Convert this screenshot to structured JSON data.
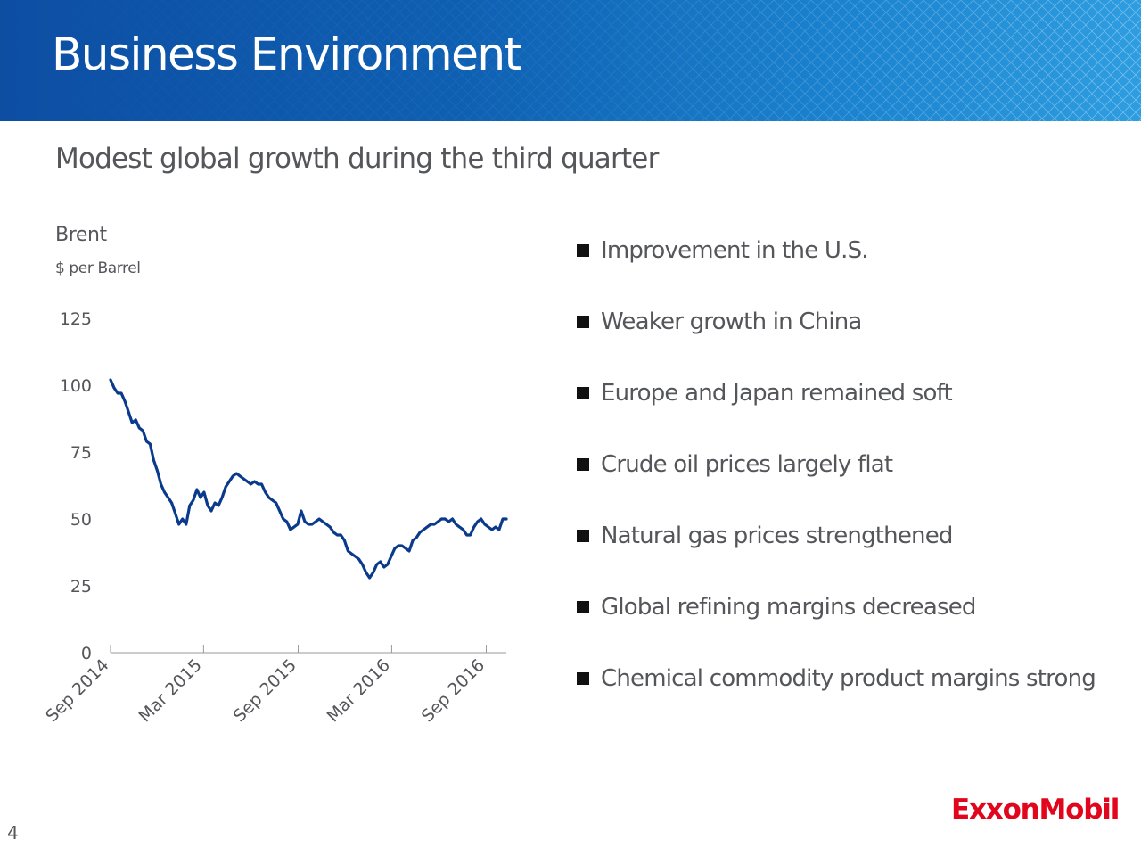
{
  "header": {
    "title": "Business Environment",
    "background_color": "#0e5fb2"
  },
  "subtitle": "Modest global growth during the third quarter",
  "chart_data": {
    "type": "line",
    "title": "Brent",
    "ylabel": "$ per Barrel",
    "xlabel": "",
    "ylim": [
      0,
      125
    ],
    "yticks": [
      "125",
      "100",
      "75",
      "50",
      "25",
      "0"
    ],
    "ytick_values": [
      125,
      100,
      75,
      50,
      25,
      0
    ],
    "xticks": [
      "Sep 2014",
      "Mar 2015",
      "Sep 2015",
      "Mar 2016",
      "Sep 2016"
    ],
    "xtick_values": [
      "2014-09-01",
      "2015-03-01",
      "2015-09-01",
      "2016-03-01",
      "2016-09-01"
    ],
    "grid": false,
    "line_color": "#0a3a8c",
    "series": [
      {
        "x": [
          "2014-09-01",
          "2014-09-08",
          "2014-09-15",
          "2014-09-22",
          "2014-09-29",
          "2014-10-06",
          "2014-10-13",
          "2014-10-20",
          "2014-10-27",
          "2014-11-03",
          "2014-11-10",
          "2014-11-17",
          "2014-11-24",
          "2014-12-01",
          "2014-12-08",
          "2014-12-15",
          "2014-12-22",
          "2014-12-29",
          "2015-01-05",
          "2015-01-12",
          "2015-01-19",
          "2015-01-26",
          "2015-02-02",
          "2015-02-09",
          "2015-02-16",
          "2015-02-23",
          "2015-03-02",
          "2015-03-09",
          "2015-03-16",
          "2015-03-23",
          "2015-03-30",
          "2015-04-06",
          "2015-04-13",
          "2015-04-20",
          "2015-04-27",
          "2015-05-04",
          "2015-05-11",
          "2015-05-18",
          "2015-05-25",
          "2015-06-01",
          "2015-06-08",
          "2015-06-15",
          "2015-06-22",
          "2015-06-29",
          "2015-07-06",
          "2015-07-13",
          "2015-07-20",
          "2015-07-27",
          "2015-08-03",
          "2015-08-10",
          "2015-08-17",
          "2015-08-24",
          "2015-08-31",
          "2015-09-07",
          "2015-09-14",
          "2015-09-21",
          "2015-09-28",
          "2015-10-05",
          "2015-10-12",
          "2015-10-19",
          "2015-10-26",
          "2015-11-02",
          "2015-11-09",
          "2015-11-16",
          "2015-11-23",
          "2015-11-30",
          "2015-12-07",
          "2015-12-14",
          "2015-12-21",
          "2015-12-28",
          "2016-01-04",
          "2016-01-11",
          "2016-01-18",
          "2016-01-25",
          "2016-02-01",
          "2016-02-08",
          "2016-02-15",
          "2016-02-22",
          "2016-02-29",
          "2016-03-07",
          "2016-03-14",
          "2016-03-21",
          "2016-03-28",
          "2016-04-04",
          "2016-04-11",
          "2016-04-18",
          "2016-04-25",
          "2016-05-02",
          "2016-05-09",
          "2016-05-16",
          "2016-05-23",
          "2016-05-30",
          "2016-06-06",
          "2016-06-13",
          "2016-06-20",
          "2016-06-27",
          "2016-07-04",
          "2016-07-11",
          "2016-07-18",
          "2016-07-25",
          "2016-08-01",
          "2016-08-08",
          "2016-08-15",
          "2016-08-22",
          "2016-08-29",
          "2016-09-05",
          "2016-09-12",
          "2016-09-19",
          "2016-09-26",
          "2016-10-03",
          "2016-10-10"
        ],
        "values": [
          102,
          99,
          97,
          97,
          94,
          90,
          86,
          87,
          84,
          83,
          79,
          78,
          72,
          68,
          63,
          60,
          58,
          56,
          52,
          48,
          50,
          48,
          55,
          57,
          61,
          58,
          60,
          55,
          53,
          56,
          55,
          58,
          62,
          64,
          66,
          67,
          66,
          65,
          64,
          63,
          64,
          63,
          63,
          60,
          58,
          57,
          56,
          53,
          50,
          49,
          46,
          47,
          48,
          53,
          49,
          48,
          48,
          49,
          50,
          49,
          48,
          47,
          45,
          44,
          44,
          42,
          38,
          37,
          36,
          35,
          33,
          30,
          28,
          30,
          33,
          34,
          32,
          33,
          36,
          39,
          40,
          40,
          39,
          38,
          42,
          43,
          45,
          46,
          47,
          48,
          48,
          49,
          50,
          50,
          49,
          50,
          48,
          47,
          46,
          44,
          44,
          47,
          49,
          50,
          48,
          47,
          46,
          47,
          46,
          50,
          50
        ]
      }
    ]
  },
  "bullets": [
    "Improvement in the U.S.",
    "Weaker growth in China",
    "Europe and Japan remained soft",
    "Crude oil prices largely flat",
    "Natural gas prices strengthened",
    "Global refining margins decreased",
    "Chemical commodity product margins strong"
  ],
  "logo": {
    "text": "ExxonMobil",
    "color": "#e1061c"
  },
  "page_number": "4"
}
